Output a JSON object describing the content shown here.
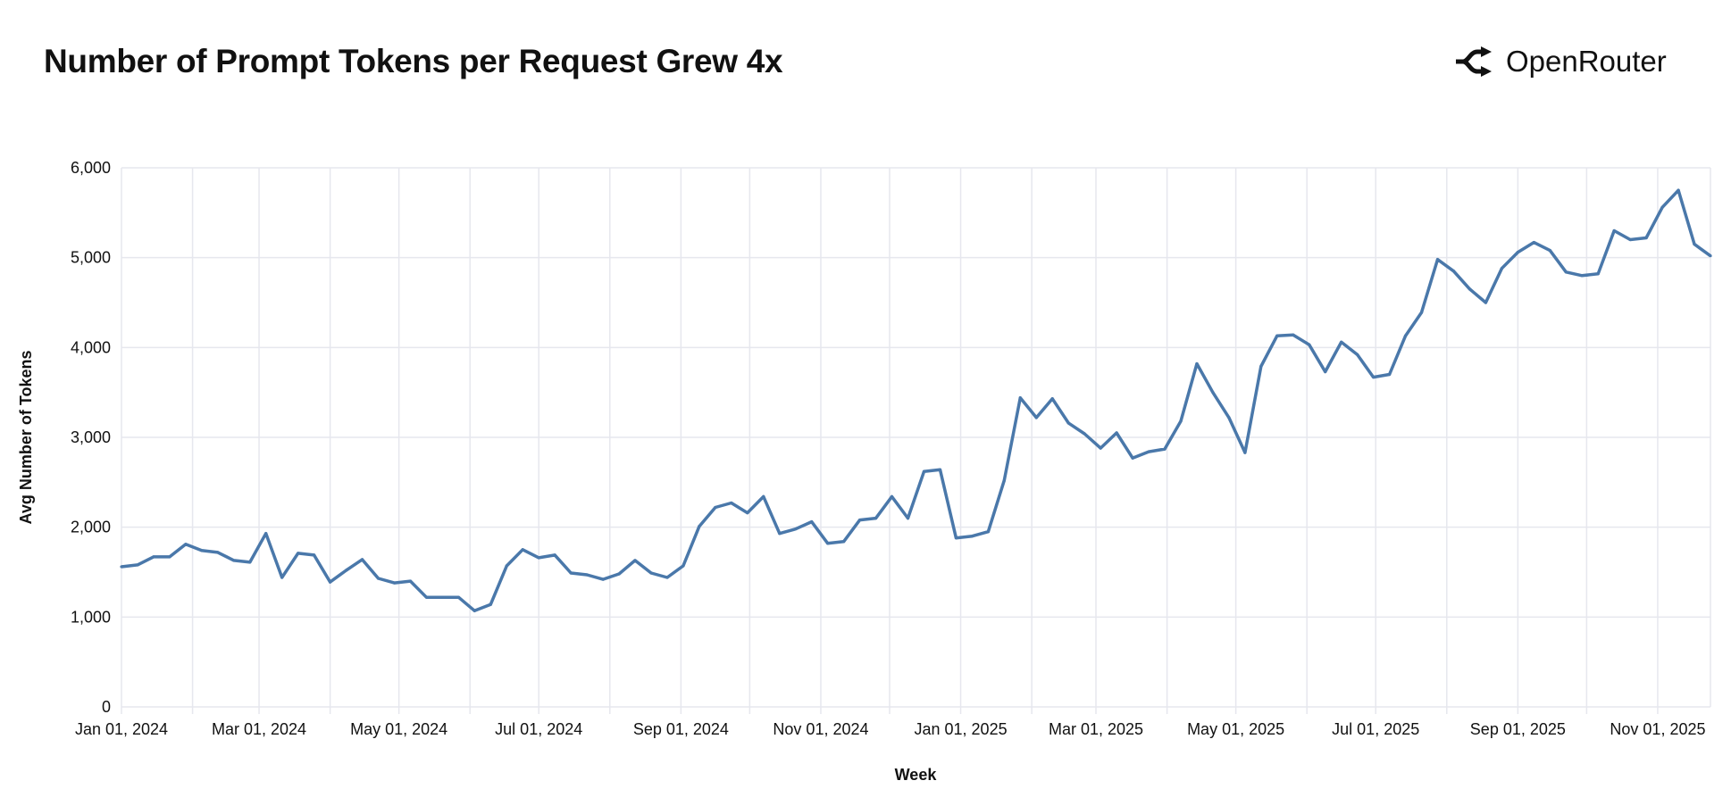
{
  "header": {
    "title": "Number of Prompt Tokens per Request Grew 4x",
    "brand": "OpenRouter",
    "brand_icon": "openrouter-logo-icon"
  },
  "chart_data": {
    "type": "line",
    "title": "Number of Prompt Tokens per Request Grew 4x",
    "xlabel": "Week",
    "ylabel": "Avg Number of Tokens",
    "ylim": [
      0,
      6000
    ],
    "xlim": [
      "2024-01-01",
      "2025-11-24"
    ],
    "grid": true,
    "line_color": "#4a78aa",
    "yticks": [
      0,
      1000,
      2000,
      3000,
      4000,
      5000,
      6000
    ],
    "ytick_labels": [
      "0",
      "1,000",
      "2,000",
      "3,000",
      "4,000",
      "5,000",
      "6,000"
    ],
    "xticks": [
      "2024-01-01",
      "2024-03-01",
      "2024-05-01",
      "2024-07-01",
      "2024-09-01",
      "2024-11-01",
      "2025-01-01",
      "2025-03-01",
      "2025-05-01",
      "2025-07-01",
      "2025-09-01",
      "2025-11-01"
    ],
    "xtick_labels": [
      "Jan 01, 2024",
      "Mar 01, 2024",
      "May 01, 2024",
      "Jul 01, 2024",
      "Sep 01, 2024",
      "Nov 01, 2024",
      "Jan 01, 2025",
      "Mar 01, 2025",
      "May 01, 2025",
      "Jul 01, 2025",
      "Sep 01, 2025",
      "Nov 01, 2025"
    ],
    "x": [
      "2024-01-01",
      "2024-01-08",
      "2024-01-15",
      "2024-01-22",
      "2024-01-29",
      "2024-02-05",
      "2024-02-12",
      "2024-02-19",
      "2024-02-26",
      "2024-03-04",
      "2024-03-11",
      "2024-03-18",
      "2024-03-25",
      "2024-04-01",
      "2024-04-08",
      "2024-04-15",
      "2024-04-22",
      "2024-04-29",
      "2024-05-06",
      "2024-05-13",
      "2024-05-20",
      "2024-05-27",
      "2024-06-03",
      "2024-06-10",
      "2024-06-17",
      "2024-06-24",
      "2024-07-01",
      "2024-07-08",
      "2024-07-15",
      "2024-07-22",
      "2024-07-29",
      "2024-08-05",
      "2024-08-12",
      "2024-08-19",
      "2024-08-26",
      "2024-09-02",
      "2024-09-09",
      "2024-09-16",
      "2024-09-23",
      "2024-09-30",
      "2024-10-07",
      "2024-10-14",
      "2024-10-21",
      "2024-10-28",
      "2024-11-04",
      "2024-11-11",
      "2024-11-18",
      "2024-11-25",
      "2024-12-02",
      "2024-12-09",
      "2024-12-16",
      "2024-12-23",
      "2024-12-30",
      "2025-01-06",
      "2025-01-13",
      "2025-01-20",
      "2025-01-27",
      "2025-02-03",
      "2025-02-10",
      "2025-02-17",
      "2025-02-24",
      "2025-03-03",
      "2025-03-10",
      "2025-03-17",
      "2025-03-24",
      "2025-03-31",
      "2025-04-07",
      "2025-04-14",
      "2025-04-21",
      "2025-04-28",
      "2025-05-05",
      "2025-05-12",
      "2025-05-19",
      "2025-05-26",
      "2025-06-02",
      "2025-06-09",
      "2025-06-16",
      "2025-06-23",
      "2025-06-30",
      "2025-07-07",
      "2025-07-14",
      "2025-07-21",
      "2025-07-28",
      "2025-08-04",
      "2025-08-11",
      "2025-08-18",
      "2025-08-25",
      "2025-09-01",
      "2025-09-08",
      "2025-09-15",
      "2025-09-22",
      "2025-09-29",
      "2025-10-06",
      "2025-10-13",
      "2025-10-20",
      "2025-10-27",
      "2025-11-03",
      "2025-11-10",
      "2025-11-17",
      "2025-11-24"
    ],
    "values": [
      1560,
      1580,
      1670,
      1670,
      1810,
      1740,
      1720,
      1630,
      1610,
      1930,
      1440,
      1710,
      1690,
      1390,
      1520,
      1640,
      1430,
      1380,
      1400,
      1220,
      1220,
      1220,
      1070,
      1140,
      1570,
      1750,
      1660,
      1690,
      1490,
      1470,
      1420,
      1480,
      1630,
      1490,
      1440,
      1570,
      2010,
      2220,
      2270,
      2160,
      2340,
      1930,
      1980,
      2060,
      1820,
      1840,
      2080,
      2100,
      2340,
      2100,
      2620,
      2640,
      1880,
      1900,
      1950,
      2520,
      3440,
      3220,
      3430,
      3160,
      3040,
      2880,
      3050,
      2770,
      2840,
      2870,
      3180,
      3820,
      3500,
      3220,
      2830,
      3790,
      4130,
      4140,
      4030,
      3730,
      4060,
      3920,
      3670,
      3700,
      4130,
      4390,
      4980,
      4850,
      4650,
      4500,
      4880,
      5060,
      5170,
      5080,
      4840,
      4800,
      4820,
      5300,
      5200,
      5220,
      5560,
      5750,
      5150,
      5020
    ]
  }
}
